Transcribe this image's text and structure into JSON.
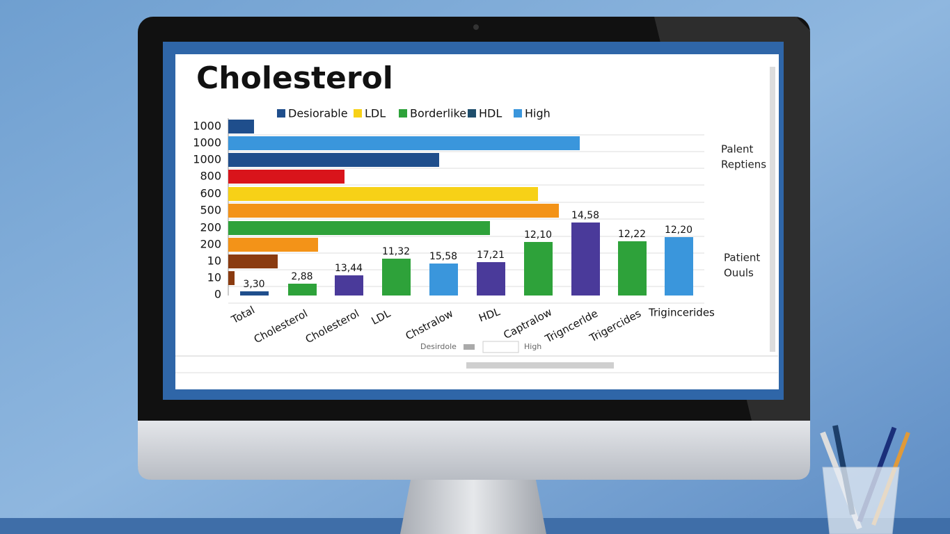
{
  "header": {
    "title": "Cholesterol"
  },
  "legend": [
    "Desiorable",
    "LDL",
    "Borderlike",
    "HDL",
    "High"
  ],
  "y_labels": [
    "1000",
    "1000",
    "1000",
    "800",
    "600",
    "500",
    "200",
    "200",
    "10",
    "10",
    "0"
  ],
  "bar_labels": [
    "3,30",
    "2,88",
    "13,44",
    "11,32",
    "15,58",
    "17,21",
    "12,10",
    "14,58",
    "12,22",
    "12,20"
  ],
  "x_labels": [
    "Total",
    "Cholesterol",
    "Cholesterol",
    "LDL",
    "Chstralow",
    "HDL",
    "Captralow",
    "Trigncerlde",
    "Trigercides",
    "Trigincerides"
  ],
  "side_notes": {
    "top": [
      "Palent",
      "Reptiens"
    ],
    "bottom": [
      "Patient",
      "Ouuls"
    ]
  },
  "footer_legend": [
    "Desirdole",
    "High"
  ]
}
